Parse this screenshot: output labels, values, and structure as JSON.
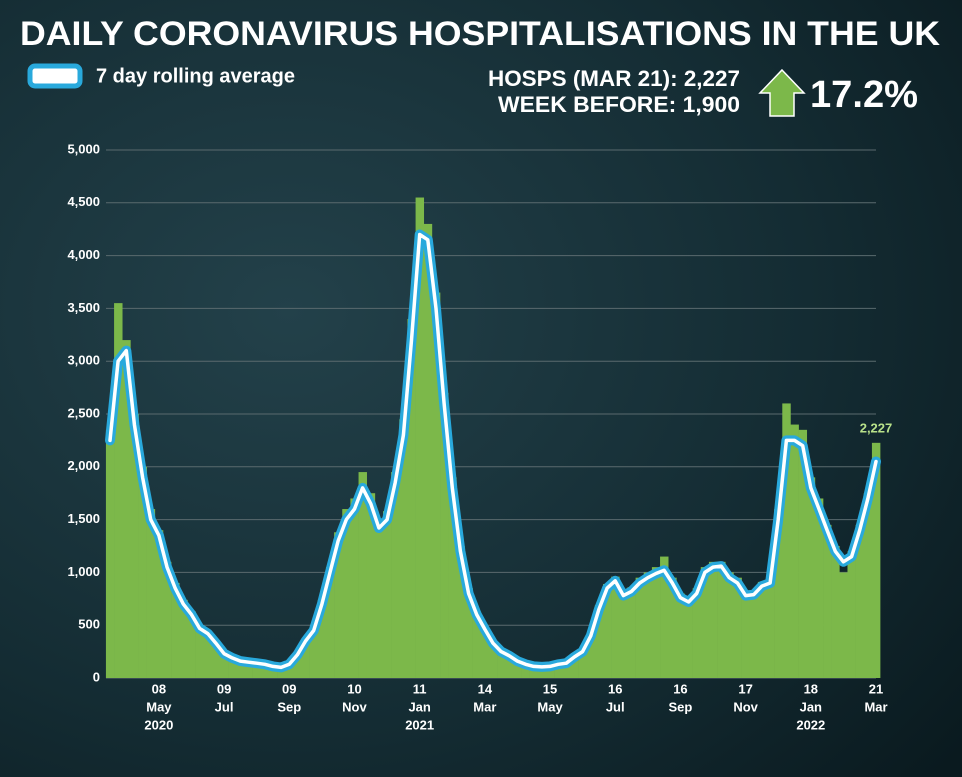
{
  "chart_data": {
    "type": "bar-line",
    "title": "DAILY CORONAVIRUS HOSPITALISATIONS IN THE UK",
    "stats": [
      "HOSPS (MAR 21): 2,227",
      "WEEK BEFORE: 1,900"
    ],
    "change": "17.2%",
    "categories": [
      null,
      null,
      null,
      null,
      null,
      null,
      [
        "08",
        "May",
        "2020"
      ],
      null,
      null,
      null,
      null,
      null,
      null,
      null,
      [
        "09",
        "Jul"
      ],
      null,
      null,
      null,
      null,
      null,
      null,
      null,
      [
        "09",
        "Sep"
      ],
      null,
      null,
      null,
      null,
      null,
      null,
      null,
      [
        "10",
        "Nov"
      ],
      null,
      null,
      null,
      null,
      null,
      null,
      null,
      [
        "11",
        "Jan",
        "2021"
      ],
      null,
      null,
      null,
      null,
      null,
      null,
      null,
      [
        "14",
        "Mar"
      ],
      null,
      null,
      null,
      null,
      null,
      null,
      null,
      [
        "15",
        "May"
      ],
      null,
      null,
      null,
      null,
      null,
      null,
      null,
      [
        "16",
        "Jul"
      ],
      null,
      null,
      null,
      null,
      null,
      null,
      null,
      [
        "16",
        "Sep"
      ],
      null,
      null,
      null,
      null,
      null,
      null,
      null,
      [
        "17",
        "Nov"
      ],
      null,
      null,
      null,
      null,
      null,
      null,
      null,
      [
        "18",
        "Jan",
        "2022"
      ],
      null,
      null,
      null,
      null,
      null,
      null,
      null,
      [
        "21",
        "Mar"
      ]
    ],
    "series": [
      {
        "color": "#7cb84a",
        "values": [
          2350,
          3550,
          3200,
          2500,
          2000,
          1600,
          1400,
          1100,
          900,
          740,
          630,
          500,
          440,
          350,
          250,
          200,
          170,
          160,
          150,
          140,
          120,
          110,
          140,
          240,
          370,
          480,
          740,
          1050,
          1380,
          1600,
          1700,
          1950,
          1750,
          1500,
          1580,
          1950,
          2450,
          3400,
          4550,
          4300,
          3650,
          2700,
          1900,
          1250,
          850,
          630,
          480,
          350,
          260,
          220,
          170,
          140,
          120,
          110,
          120,
          140,
          150,
          210,
          270,
          420,
          690,
          890,
          960,
          820,
          860,
          950,
          1000,
          1050,
          1150,
          950,
          800,
          750,
          850,
          1050,
          1100,
          1100,
          1000,
          950,
          820,
          830,
          910,
          950,
          1600,
          2600,
          2400,
          2350,
          1900,
          1700,
          1450,
          1250,
          1000,
          1200,
          1450,
          1750,
          2227
        ],
        "value_labels": [
          null,
          null,
          null,
          null,
          null,
          null,
          null,
          null,
          null,
          null,
          null,
          null,
          null,
          null,
          null,
          null,
          null,
          null,
          null,
          null,
          null,
          null,
          null,
          null,
          null,
          null,
          null,
          null,
          null,
          null,
          null,
          null,
          null,
          null,
          null,
          null,
          null,
          null,
          null,
          null,
          null,
          null,
          null,
          null,
          null,
          null,
          null,
          null,
          null,
          null,
          null,
          null,
          null,
          null,
          null,
          null,
          null,
          null,
          null,
          null,
          null,
          null,
          null,
          null,
          null,
          null,
          null,
          null,
          null,
          null,
          null,
          null,
          null,
          null,
          null,
          null,
          null,
          null,
          null,
          null,
          null,
          null,
          null,
          null,
          null,
          null,
          null,
          null,
          null,
          null,
          null,
          null,
          null,
          null,
          "2,227"
        ]
      },
      {
        "name": "7 day rolling average",
        "color": "#29a9dc",
        "axis": "y",
        "values": [
          2250,
          3000,
          3100,
          2400,
          1900,
          1500,
          1350,
          1050,
          850,
          700,
          600,
          470,
          420,
          330,
          230,
          190,
          160,
          150,
          140,
          130,
          110,
          100,
          130,
          220,
          350,
          450,
          700,
          1000,
          1300,
          1500,
          1600,
          1800,
          1650,
          1420,
          1500,
          1850,
          2300,
          3200,
          4200,
          4150,
          3500,
          2600,
          1800,
          1200,
          800,
          600,
          460,
          330,
          250,
          210,
          160,
          130,
          110,
          105,
          110,
          130,
          140,
          200,
          250,
          400,
          650,
          850,
          920,
          780,
          820,
          900,
          950,
          990,
          1020,
          900,
          760,
          720,
          800,
          1000,
          1050,
          1060,
          950,
          900,
          780,
          790,
          870,
          900,
          1500,
          2250,
          2250,
          2200,
          1800,
          1600,
          1400,
          1200,
          1100,
          1150,
          1400,
          1700,
          2050
        ]
      }
    ],
    "ylim": [
      0,
      5000
    ],
    "yticks": [
      0,
      500,
      {
        "value": 1000,
        "label": "1,000"
      },
      {
        "value": 1500,
        "label": "1,500"
      },
      {
        "value": 2000,
        "label": "2,000"
      },
      {
        "value": 2500,
        "label": "2,500"
      },
      {
        "value": 3000,
        "label": "3,000"
      },
      {
        "value": 3500,
        "label": "3,500"
      },
      {
        "value": 4000,
        "label": "4,000"
      },
      {
        "value": 4500,
        "label": "4,500"
      },
      {
        "value": 5000,
        "label": "5,000"
      }
    ],
    "grid": true
  }
}
